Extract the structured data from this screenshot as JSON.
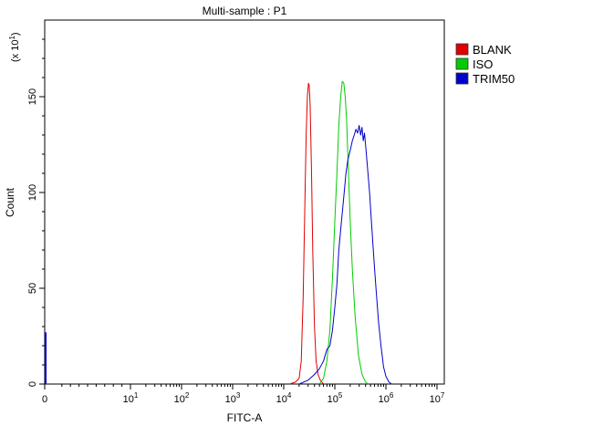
{
  "chart_data": {
    "type": "histogram",
    "title": "Multi-sample : P1",
    "xlabel": "FITC-A",
    "ylabel": "Count",
    "y_multiplier_label": "(x 10",
    "y_multiplier_exp": "1",
    "x_scale": "log",
    "x_ticks": [
      {
        "value": 0,
        "base": "0",
        "exp": ""
      },
      {
        "value": 10,
        "base": "10",
        "exp": "1"
      },
      {
        "value": 100,
        "base": "10",
        "exp": "2"
      },
      {
        "value": 1000,
        "base": "10",
        "exp": "3"
      },
      {
        "value": 10000,
        "base": "10",
        "exp": "4"
      },
      {
        "value": 100000,
        "base": "10",
        "exp": "5"
      },
      {
        "value": 1000000,
        "base": "10",
        "exp": "6"
      },
      {
        "value": 10000000,
        "base": "10",
        "exp": "7"
      }
    ],
    "y_ticks": [
      0,
      50,
      100,
      150
    ],
    "ylim": [
      0,
      190
    ],
    "legend_position": "top-right",
    "series": [
      {
        "name": "BLANK",
        "color": "#e00000",
        "points": [
          [
            13000,
            0
          ],
          [
            17000,
            1
          ],
          [
            20000,
            3
          ],
          [
            22000,
            12
          ],
          [
            24000,
            45
          ],
          [
            26000,
            95
          ],
          [
            27500,
            130
          ],
          [
            29000,
            150
          ],
          [
            30500,
            157
          ],
          [
            31500,
            156
          ],
          [
            33000,
            145
          ],
          [
            35000,
            110
          ],
          [
            37000,
            70
          ],
          [
            40000,
            30
          ],
          [
            43000,
            12
          ],
          [
            47000,
            5
          ],
          [
            52000,
            2
          ],
          [
            60000,
            0
          ]
        ]
      },
      {
        "name": "ISO",
        "color": "#00cc00",
        "points": [
          [
            50000,
            0
          ],
          [
            60000,
            3
          ],
          [
            70000,
            12
          ],
          [
            80000,
            28
          ],
          [
            90000,
            55
          ],
          [
            100000,
            85
          ],
          [
            110000,
            110
          ],
          [
            120000,
            135
          ],
          [
            130000,
            150
          ],
          [
            140000,
            158
          ],
          [
            150000,
            157
          ],
          [
            160000,
            150
          ],
          [
            170000,
            138
          ],
          [
            185000,
            110
          ],
          [
            200000,
            85
          ],
          [
            220000,
            60
          ],
          [
            250000,
            35
          ],
          [
            290000,
            15
          ],
          [
            340000,
            5
          ],
          [
            400000,
            1
          ],
          [
            450000,
            0
          ]
        ]
      },
      {
        "name": "TRIM50",
        "color": "#0000cc",
        "points": [
          [
            20000,
            0
          ],
          [
            30000,
            2
          ],
          [
            40000,
            5
          ],
          [
            50000,
            8
          ],
          [
            60000,
            12
          ],
          [
            70000,
            18
          ],
          [
            80000,
            20
          ],
          [
            90000,
            28
          ],
          [
            100000,
            40
          ],
          [
            110000,
            52
          ],
          [
            120000,
            70
          ],
          [
            135000,
            85
          ],
          [
            150000,
            98
          ],
          [
            165000,
            110
          ],
          [
            180000,
            117
          ],
          [
            200000,
            122
          ],
          [
            220000,
            127
          ],
          [
            240000,
            130
          ],
          [
            260000,
            133
          ],
          [
            280000,
            131
          ],
          [
            300000,
            135
          ],
          [
            320000,
            130
          ],
          [
            340000,
            134
          ],
          [
            360000,
            127
          ],
          [
            380000,
            131
          ],
          [
            400000,
            125
          ],
          [
            440000,
            112
          ],
          [
            480000,
            100
          ],
          [
            520000,
            85
          ],
          [
            560000,
            72
          ],
          [
            600000,
            60
          ],
          [
            660000,
            45
          ],
          [
            720000,
            32
          ],
          [
            800000,
            20
          ],
          [
            900000,
            9
          ],
          [
            1000000,
            4
          ],
          [
            1150000,
            1
          ],
          [
            1300000,
            0
          ]
        ]
      }
    ]
  }
}
